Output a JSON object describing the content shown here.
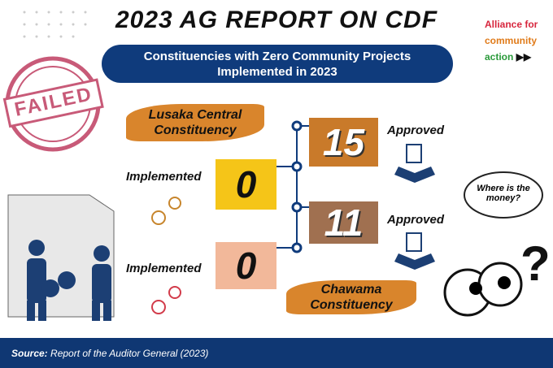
{
  "header": {
    "title": "2023 AG REPORT ON CDF",
    "subtitle": "Constituencies with Zero Community Projects Implemented in 2023"
  },
  "logo": {
    "line1": "Alliance for",
    "line2": "community",
    "line3": "action"
  },
  "stamp": "FAILED",
  "labels": {
    "approved": "Approved",
    "implemented": "Implemented"
  },
  "constituencies": [
    {
      "name": "Lusaka Central Constituency",
      "approved": 15,
      "implemented": 0
    },
    {
      "name": "Chawama Constituency",
      "approved": 11,
      "implemented": 0
    }
  ],
  "bubble": "Where is the money?",
  "footer": {
    "source_label": "Source:",
    "source_text": "Report of the Auditor General (2023)"
  }
}
